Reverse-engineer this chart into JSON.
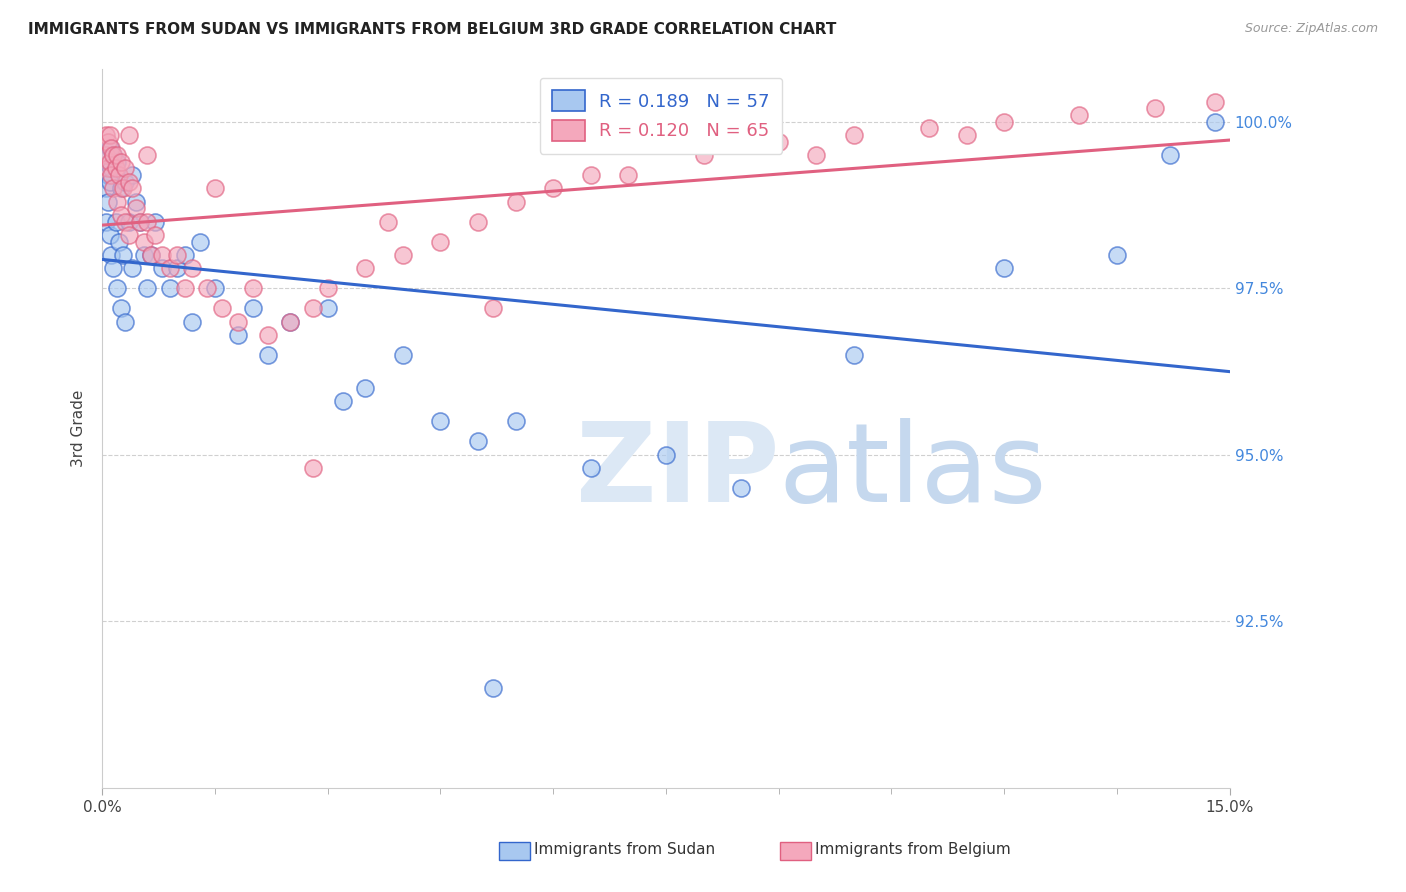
{
  "title": "IMMIGRANTS FROM SUDAN VS IMMIGRANTS FROM BELGIUM 3RD GRADE CORRELATION CHART",
  "source": "Source: ZipAtlas.com",
  "ylabel": "3rd Grade",
  "xlim": [
    0.0,
    15.0
  ],
  "ylim": [
    90.0,
    100.8
  ],
  "ytick_values": [
    92.5,
    95.0,
    97.5,
    100.0
  ],
  "ytick_labels": [
    "92.5%",
    "95.0%",
    "97.5%",
    "100.0%"
  ],
  "legend_sudan_R": "0.189",
  "legend_sudan_N": "57",
  "legend_belgium_R": "0.120",
  "legend_belgium_N": "65",
  "color_sudan": "#A8C8F0",
  "color_belgium": "#F4A8BC",
  "line_color_sudan": "#3366CC",
  "line_color_belgium": "#E06080",
  "sudan_x": [
    0.05,
    0.05,
    0.05,
    0.08,
    0.08,
    0.1,
    0.1,
    0.1,
    0.12,
    0.12,
    0.15,
    0.15,
    0.18,
    0.2,
    0.2,
    0.22,
    0.25,
    0.25,
    0.28,
    0.3,
    0.3,
    0.35,
    0.4,
    0.4,
    0.45,
    0.5,
    0.55,
    0.6,
    0.65,
    0.7,
    0.8,
    0.9,
    1.0,
    1.1,
    1.2,
    1.3,
    1.5,
    1.8,
    2.0,
    2.2,
    2.5,
    3.0,
    3.2,
    3.5,
    4.0,
    4.5,
    5.0,
    5.5,
    6.5,
    7.5,
    8.5,
    10.0,
    12.0,
    13.5,
    14.2,
    14.8,
    5.2
  ],
  "sudan_y": [
    99.5,
    99.0,
    98.5,
    99.2,
    98.8,
    99.6,
    99.1,
    98.3,
    99.3,
    98.0,
    99.5,
    97.8,
    98.5,
    99.4,
    97.5,
    98.2,
    99.0,
    97.2,
    98.0,
    99.1,
    97.0,
    98.5,
    99.2,
    97.8,
    98.8,
    98.5,
    98.0,
    97.5,
    98.0,
    98.5,
    97.8,
    97.5,
    97.8,
    98.0,
    97.0,
    98.2,
    97.5,
    96.8,
    97.2,
    96.5,
    97.0,
    97.2,
    95.8,
    96.0,
    96.5,
    95.5,
    95.2,
    95.5,
    94.8,
    95.0,
    94.5,
    96.5,
    97.8,
    98.0,
    99.5,
    100.0,
    91.5
  ],
  "belgium_x": [
    0.05,
    0.05,
    0.08,
    0.08,
    0.1,
    0.1,
    0.12,
    0.12,
    0.15,
    0.15,
    0.18,
    0.2,
    0.2,
    0.22,
    0.25,
    0.25,
    0.28,
    0.3,
    0.3,
    0.35,
    0.35,
    0.4,
    0.45,
    0.5,
    0.55,
    0.6,
    0.65,
    0.7,
    0.8,
    0.9,
    1.0,
    1.1,
    1.2,
    1.4,
    1.6,
    1.8,
    2.0,
    2.2,
    2.5,
    2.8,
    3.0,
    3.5,
    4.0,
    4.5,
    5.0,
    5.5,
    6.0,
    7.0,
    8.0,
    9.0,
    10.0,
    11.0,
    12.0,
    13.0,
    14.0,
    14.8,
    2.8,
    5.2,
    0.35,
    0.6,
    1.5,
    3.8,
    6.5,
    9.5,
    11.5
  ],
  "belgium_y": [
    99.8,
    99.5,
    99.7,
    99.3,
    99.8,
    99.4,
    99.6,
    99.2,
    99.5,
    99.0,
    99.3,
    99.5,
    98.8,
    99.2,
    99.4,
    98.6,
    99.0,
    99.3,
    98.5,
    99.1,
    98.3,
    99.0,
    98.7,
    98.5,
    98.2,
    98.5,
    98.0,
    98.3,
    98.0,
    97.8,
    98.0,
    97.5,
    97.8,
    97.5,
    97.2,
    97.0,
    97.5,
    96.8,
    97.0,
    97.2,
    97.5,
    97.8,
    98.0,
    98.2,
    98.5,
    98.8,
    99.0,
    99.2,
    99.5,
    99.7,
    99.8,
    99.9,
    100.0,
    100.1,
    100.2,
    100.3,
    94.8,
    97.2,
    99.8,
    99.5,
    99.0,
    98.5,
    99.2,
    99.5,
    99.8
  ]
}
